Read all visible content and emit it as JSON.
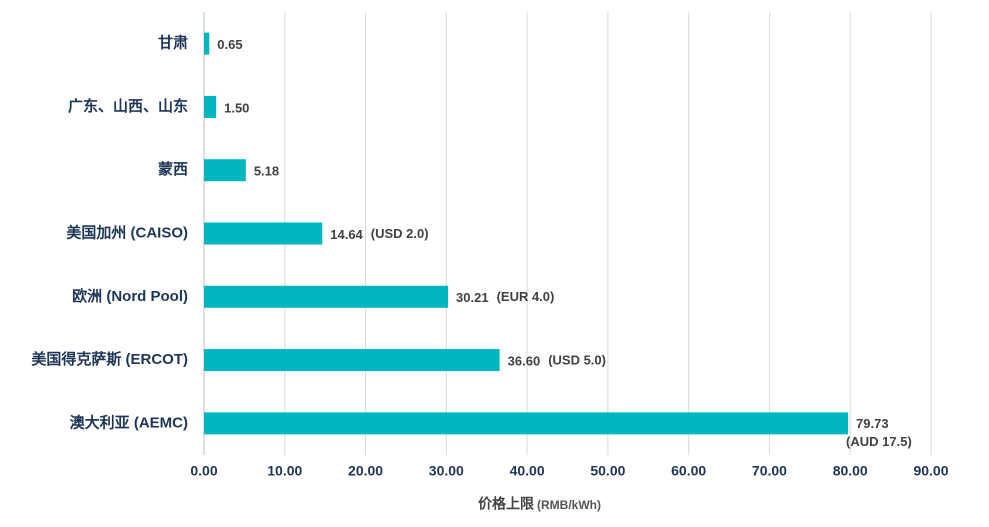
{
  "chart_data": {
    "type": "barh",
    "categories": [
      "甘肃",
      "广东、山西、山东",
      "蒙西",
      "美国加州 (CAISO)",
      "欧洲 (Nord Pool)",
      "美国得克萨斯 (ERCOT)",
      "澳大利亚 (AEMC)"
    ],
    "values": [
      0.65,
      1.5,
      5.18,
      14.64,
      30.21,
      36.6,
      79.73
    ],
    "value_labels": [
      "0.65",
      "1.50",
      "5.18",
      "14.64",
      "30.21",
      "36.60",
      "79.73"
    ],
    "notes": [
      null,
      null,
      null,
      "(USD 2.0)",
      "(EUR 4.0)",
      "(USD 5.0)",
      "(AUD 17.5)"
    ],
    "color": "#00b6bf",
    "xlim": [
      0,
      90
    ],
    "xticks": [
      {
        "value": 0,
        "label": "0.00"
      },
      {
        "value": 10,
        "label": "10.00"
      },
      {
        "value": 20,
        "label": "20.00"
      },
      {
        "value": 30,
        "label": "30.00"
      },
      {
        "value": 40,
        "label": "40.00"
      },
      {
        "value": 50,
        "label": "50.00"
      },
      {
        "value": 60,
        "label": "60.00"
      },
      {
        "value": 70,
        "label": "70.00"
      },
      {
        "value": 80,
        "label": "80.00"
      },
      {
        "value": 90,
        "label": "90.00"
      }
    ],
    "xlabel": "价格上限",
    "xlabel_unit": "(RMB/kWh)",
    "grid": true
  }
}
